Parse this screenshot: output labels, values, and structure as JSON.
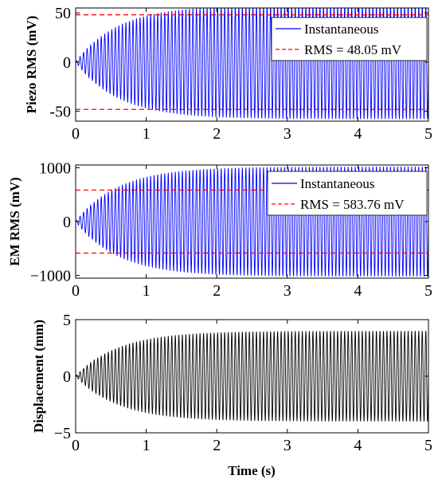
{
  "figure": {
    "line_color_piezo": "#0000ff",
    "line_color_em": "#0000ff",
    "line_color_disp": "#000000",
    "rms_color": "#ff0000"
  },
  "chart_data": [
    {
      "type": "line",
      "title": "",
      "xlabel": "",
      "ylabel": "Piezo RMS (mV)",
      "xlim": [
        0,
        5
      ],
      "ylim": [
        -60,
        55
      ],
      "xticks": [
        0,
        1,
        2,
        3,
        4,
        5
      ],
      "yticks": [
        -50,
        0,
        50
      ],
      "xtick_labels": [
        "0",
        "1",
        "2",
        "3",
        "4",
        "5"
      ],
      "ytick_labels": [
        "-50",
        "0",
        "50"
      ],
      "grid": false,
      "legend": "top-right",
      "series": [
        {
          "name": "Instantaneous",
          "kind": "oscillation",
          "amplitude": 58,
          "frequency_hz": 20,
          "time_constant_s": 0.6,
          "color": "#0000ff",
          "style": "solid"
        },
        {
          "name": "RMS = 48.05 mV",
          "kind": "hline",
          "values": [
            48.05,
            -48.05
          ],
          "color": "#ff0000",
          "style": "dashed"
        }
      ]
    },
    {
      "type": "line",
      "title": "",
      "xlabel": "",
      "ylabel": "EM RMS (mV)",
      "xlim": [
        0,
        5
      ],
      "ylim": [
        -1050,
        1050
      ],
      "xticks": [
        0,
        1,
        2,
        3,
        4,
        5
      ],
      "yticks": [
        -1000,
        0,
        1000
      ],
      "xtick_labels": [
        "0",
        "1",
        "2",
        "3",
        "4",
        "5"
      ],
      "ytick_labels": [
        "−1000",
        "0",
        "1000"
      ],
      "grid": false,
      "legend": "top-right",
      "series": [
        {
          "name": "Instantaneous",
          "kind": "oscillation",
          "amplitude": 1020,
          "frequency_hz": 20,
          "time_constant_s": 0.6,
          "color": "#0000ff",
          "style": "solid"
        },
        {
          "name": "RMS = 583.76 mV",
          "kind": "hline",
          "values": [
            583.76,
            -583.76
          ],
          "color": "#ff0000",
          "style": "dashed"
        }
      ]
    },
    {
      "type": "line",
      "title": "",
      "xlabel": "Time (s)",
      "ylabel": "Displacement (mm)",
      "xlim": [
        0,
        5
      ],
      "ylim": [
        -5,
        5
      ],
      "xticks": [
        0,
        1,
        2,
        3,
        4,
        5
      ],
      "yticks": [
        -5,
        0,
        5
      ],
      "xtick_labels": [
        "0",
        "1",
        "2",
        "3",
        "4",
        "5"
      ],
      "ytick_labels": [
        "−5",
        "0",
        "5"
      ],
      "grid": false,
      "legend": "none",
      "series": [
        {
          "kind": "oscillation",
          "amplitude": 4,
          "frequency_hz": 20,
          "time_constant_s": 0.6,
          "color": "#000000",
          "style": "solid"
        }
      ]
    }
  ]
}
